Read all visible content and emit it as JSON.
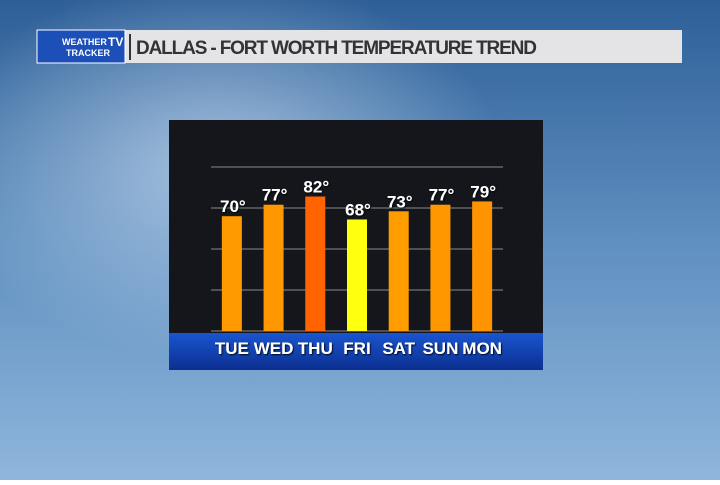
{
  "logo": {
    "line1": "WEATHER",
    "line2": "TRACKER",
    "badge": "TV"
  },
  "chart_data": {
    "type": "bar",
    "title": "DALLAS - FORT WORTH TEMPERATURE TREND",
    "categories": [
      "TUE",
      "WED",
      "THU",
      "FRI",
      "SAT",
      "SUN",
      "MON"
    ],
    "values": [
      70,
      77,
      82,
      68,
      73,
      77,
      79
    ],
    "value_labels": [
      "70°",
      "77°",
      "82°",
      "68°",
      "73°",
      "77°",
      "79°"
    ],
    "colors": [
      "#ff9a00",
      "#ff9800",
      "#ff6400",
      "#ffff10",
      "#ff9c00",
      "#ff9800",
      "#ff9400"
    ],
    "ylim": [
      0,
      100
    ],
    "yticks": [
      0,
      25,
      50,
      75,
      100
    ],
    "grid": true
  }
}
